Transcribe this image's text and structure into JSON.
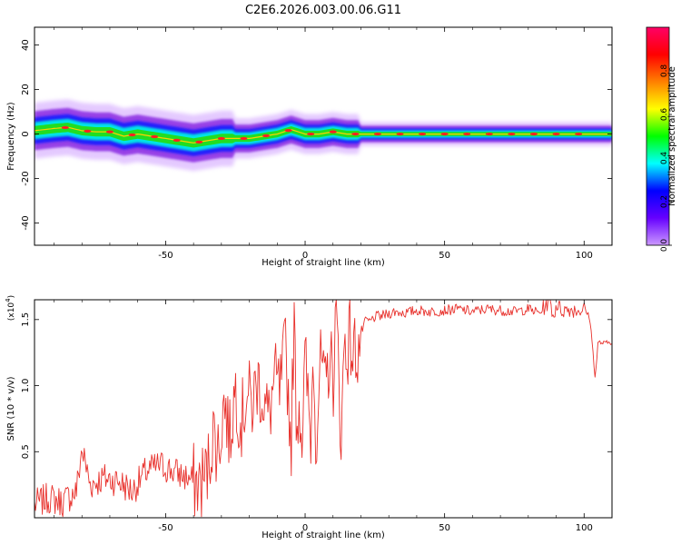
{
  "title": "C2E6.2026.003.00.06.G11",
  "chart_data": [
    {
      "type": "heatmap",
      "name": "spectrogram",
      "xlabel": "Height of straight line (km)",
      "ylabel": "Frequency (Hz)",
      "xlim": [
        -97,
        110
      ],
      "ylim": [
        -50,
        48
      ],
      "xticks": [
        -50,
        0,
        50,
        100
      ],
      "yticks": [
        -40,
        -20,
        0,
        20,
        40
      ],
      "xtick_labels": [
        "-50",
        "0",
        "50",
        "100"
      ],
      "ytick_labels": [
        "-40",
        "-20",
        "0",
        "20",
        "40"
      ],
      "ridge": {
        "x": [
          -97,
          -90,
          -85,
          -80,
          -75,
          -70,
          -65,
          -60,
          -55,
          -50,
          -45,
          -40,
          -35,
          -30,
          -25,
          -20,
          -15,
          -10,
          -5,
          0,
          5,
          10,
          15,
          20,
          30,
          50,
          80,
          100,
          110
        ],
        "y": [
          1.5,
          2.5,
          3,
          1.5,
          1,
          1,
          -1,
          0,
          -1,
          -2,
          -3,
          -4,
          -3,
          -2,
          -2,
          -2,
          -1,
          0,
          2,
          0,
          0,
          1,
          0,
          0,
          0,
          0,
          0,
          0,
          0
        ]
      },
      "colorbar": {
        "label": "Normalized spectral amplitude",
        "range": [
          0,
          1
        ],
        "ticks": [
          0.0,
          0.2,
          0.4,
          0.6,
          0.8
        ],
        "tick_labels": [
          "0.0",
          "0.2",
          "0.4",
          "0.6",
          "0.8"
        ],
        "colors": [
          "#cc99ff",
          "#6600ff",
          "#0000ff",
          "#00ffff",
          "#00ff00",
          "#ffff00",
          "#ff8000",
          "#ff0000",
          "#ff0066"
        ]
      }
    },
    {
      "type": "line",
      "name": "snr",
      "xlabel": "Height of straight line (km)",
      "ylabel": "SNR (10 * v/v)",
      "scale_label": "(x10",
      "scale_exp": "4",
      "scale_close": ")",
      "xlim": [
        -97,
        110
      ],
      "ylim": [
        0,
        1.65
      ],
      "xticks": [
        -50,
        0,
        50,
        100
      ],
      "yticks": [
        0.5,
        1.0,
        1.5
      ],
      "xtick_labels": [
        "-50",
        "0",
        "50",
        "100"
      ],
      "ytick_labels": [
        "0.5",
        "1.0",
        "1.5"
      ],
      "line_color": "#e8312c",
      "series": [
        {
          "name": "SNR",
          "x": [
            -97,
            -92,
            -87,
            -82,
            -80,
            -77,
            -72,
            -67,
            -62,
            -57,
            -52,
            -47,
            -42,
            -38,
            -35,
            -33,
            -31,
            -29,
            -27,
            -25,
            -23,
            -21,
            -19,
            -17,
            -15,
            -13,
            -11,
            -9,
            -7,
            -5,
            -4,
            -3,
            -2,
            -1,
            0,
            1,
            2,
            3,
            4,
            5,
            6,
            7,
            8,
            9,
            10,
            11,
            12,
            13,
            14,
            15,
            16,
            17,
            18,
            19,
            20,
            21,
            22,
            23,
            25,
            28,
            32,
            36,
            40,
            45,
            50,
            55,
            60,
            65,
            70,
            75,
            80,
            84,
            86,
            87,
            88,
            89,
            90,
            92,
            95,
            98,
            100,
            101,
            102,
            103,
            104,
            105,
            107,
            110
          ],
          "y": [
            0.1,
            0.15,
            0.12,
            0.2,
            0.52,
            0.25,
            0.3,
            0.28,
            0.2,
            0.35,
            0.4,
            0.35,
            0.3,
            0.25,
            0.35,
            0.65,
            0.5,
            0.9,
            0.6,
            1.0,
            0.7,
            0.95,
            0.85,
            1.05,
            0.9,
            0.75,
            1.05,
            0.95,
            1.3,
            0.55,
            1.5,
            0.7,
            0.9,
            0.6,
            1.2,
            0.9,
            0.6,
            1.3,
            0.55,
            1.05,
            1.2,
            0.9,
            1.1,
            1.25,
            1.0,
            1.55,
            1.15,
            0.55,
            1.35,
            1.25,
            1.4,
            1.2,
            1.3,
            1.25,
            1.4,
            1.45,
            1.5,
            1.48,
            1.52,
            1.53,
            1.56,
            1.55,
            1.57,
            1.56,
            1.57,
            1.58,
            1.56,
            1.58,
            1.57,
            1.56,
            1.58,
            1.55,
            1.6,
            1.63,
            1.65,
            1.5,
            1.62,
            1.57,
            1.58,
            1.57,
            1.58,
            1.55,
            1.52,
            1.3,
            1.05,
            1.33,
            1.32,
            1.33
          ]
        }
      ]
    }
  ]
}
